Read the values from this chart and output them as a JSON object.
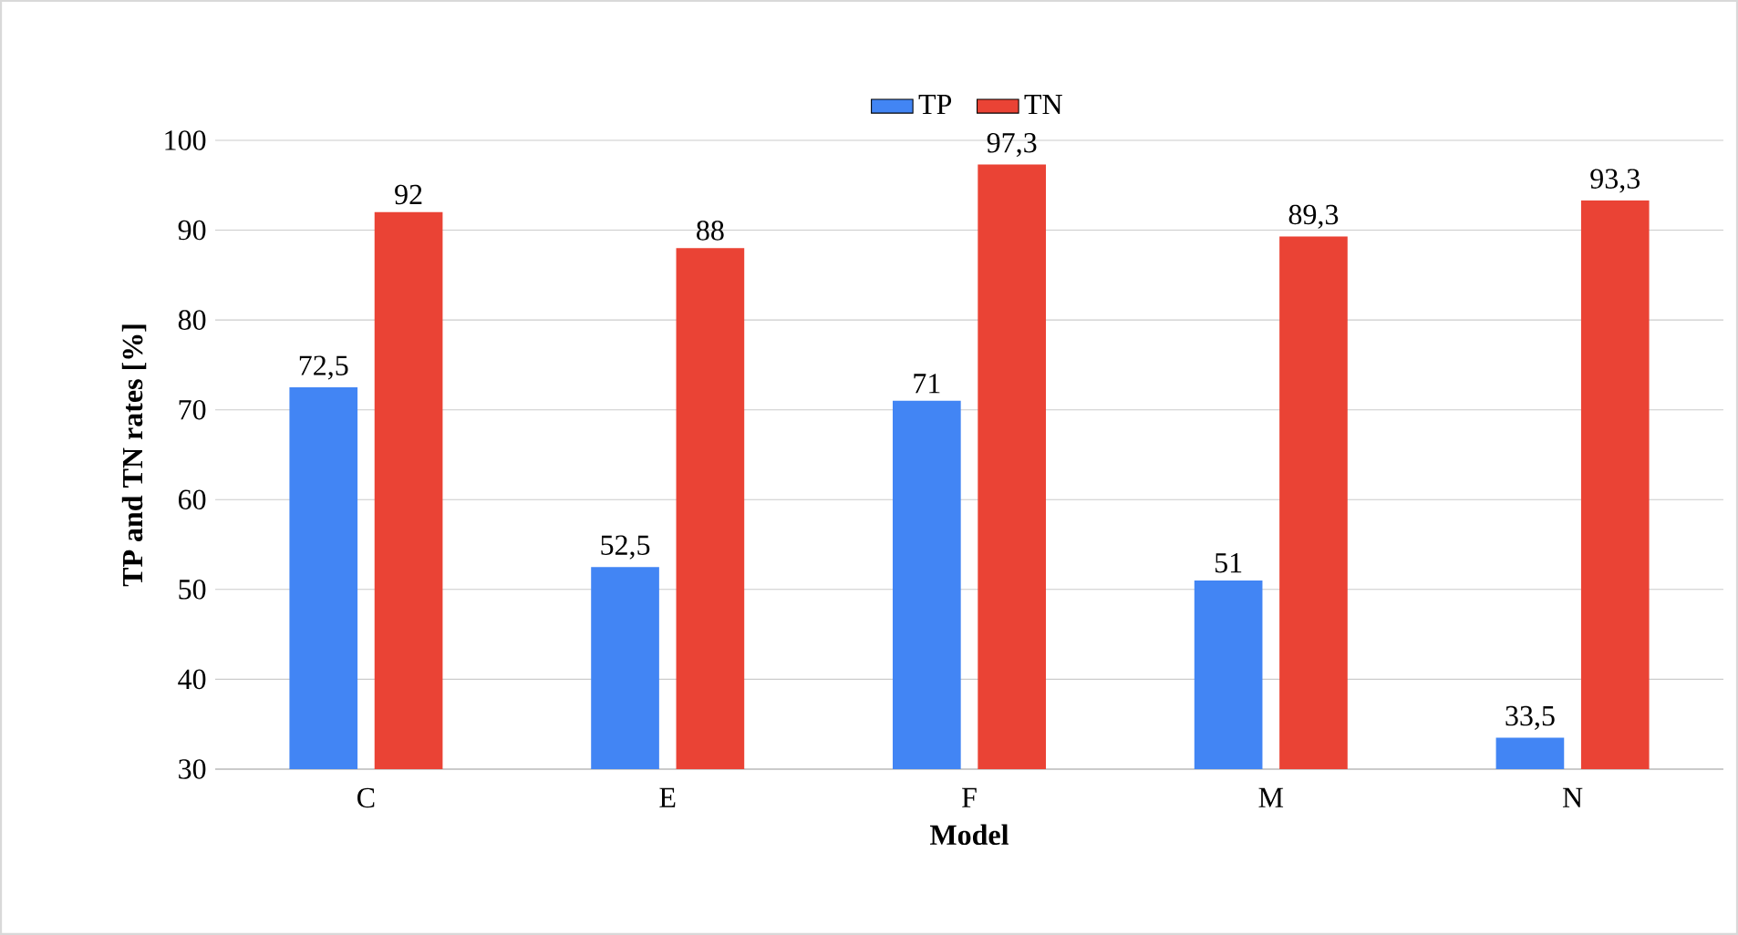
{
  "chart_data": {
    "type": "bar",
    "xlabel": "Model",
    "ylabel": "TP and TN rates [%]",
    "categories": [
      "C",
      "E",
      "F",
      "M",
      "N"
    ],
    "series": [
      {
        "name": "TP",
        "color": "#4285f4",
        "values": [
          72.5,
          52.5,
          71,
          51,
          33.5
        ],
        "value_labels": [
          "72,5",
          "52,5",
          "71",
          "51",
          "33,5"
        ]
      },
      {
        "name": "TN",
        "color": "#ea4335",
        "values": [
          92,
          88,
          97.3,
          89.3,
          93.3
        ],
        "value_labels": [
          "92",
          "88",
          "97,3",
          "89,3",
          "93,3"
        ]
      }
    ],
    "ylim": [
      30,
      100
    ],
    "yticks": [
      30,
      40,
      50,
      60,
      70,
      80,
      90,
      100
    ],
    "grid": "y",
    "legend": "top"
  }
}
